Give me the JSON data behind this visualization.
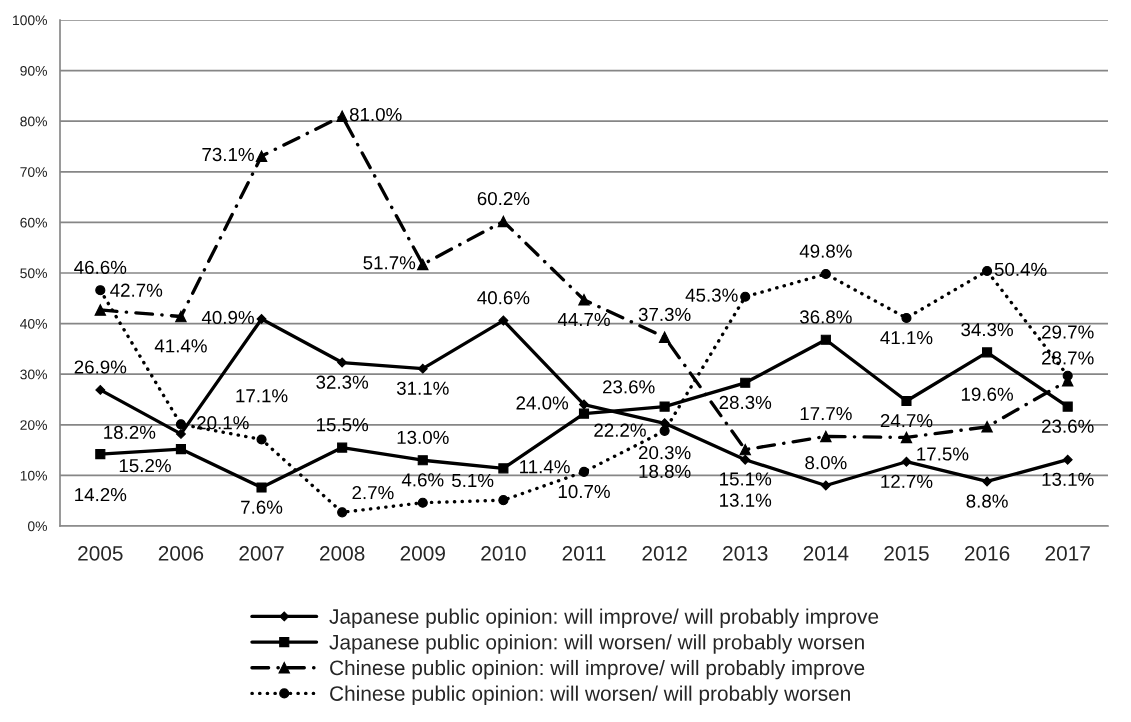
{
  "chart_data": {
    "type": "line",
    "categories": [
      "2005",
      "2006",
      "2007",
      "2008",
      "2009",
      "2010",
      "2011",
      "2012",
      "2013",
      "2014",
      "2015",
      "2016",
      "2017"
    ],
    "ylim": [
      0,
      100
    ],
    "yticks": [
      {
        "value": 0,
        "label": "0%"
      },
      {
        "value": 10,
        "label": "10%"
      },
      {
        "value": 20,
        "label": "20%"
      },
      {
        "value": 30,
        "label": "30%"
      },
      {
        "value": 40,
        "label": "40%"
      },
      {
        "value": 50,
        "label": "50%"
      },
      {
        "value": 60,
        "label": "60%"
      },
      {
        "value": 70,
        "label": "70%"
      },
      {
        "value": 80,
        "label": "80%"
      },
      {
        "value": 90,
        "label": "90%"
      },
      {
        "value": 100,
        "label": "100%"
      }
    ],
    "grid": "y",
    "legend": "bottom",
    "series": [
      {
        "name": "Japanese public opinion: will improve/ will probably improve",
        "color": "#000000",
        "marker": "diamond",
        "line_style": "solid",
        "values": [
          26.9,
          18.2,
          40.9,
          32.3,
          31.1,
          40.6,
          24.0,
          20.3,
          13.1,
          8.0,
          12.7,
          8.8,
          13.1
        ],
        "value_labels": [
          "26.9%",
          "18.2%",
          "40.9%",
          "32.3%",
          "31.1%",
          "40.6%",
          "24.0%",
          "20.3%",
          "13.1%",
          "8.0%",
          "12.7%",
          "8.8%",
          "13.1%"
        ]
      },
      {
        "name": "Japanese public opinion: will worsen/ will probably worsen",
        "color": "#000000",
        "marker": "square",
        "line_style": "solid",
        "values": [
          14.2,
          15.2,
          7.6,
          15.5,
          13.0,
          11.4,
          22.2,
          23.6,
          28.3,
          36.8,
          24.7,
          34.3,
          23.6
        ],
        "value_labels": [
          "14.2%",
          "15.2%",
          "7.6%",
          "15.5%",
          "13.0%",
          "11.4%",
          "22.2%",
          "23.6%",
          "28.3%",
          "36.8%",
          "24.7%",
          "34.3%",
          "23.6%"
        ]
      },
      {
        "name": "Chinese public opinion: will improve/ will probably improve",
        "color": "#000000",
        "marker": "triangle",
        "line_style": "dashed",
        "values": [
          42.7,
          41.4,
          73.1,
          81.0,
          51.7,
          60.2,
          44.7,
          37.3,
          15.1,
          17.7,
          17.5,
          19.6,
          28.7
        ],
        "value_labels": [
          "42.7%",
          "41.4%",
          "73.1%",
          "81.0%",
          "51.7%",
          "60.2%",
          "44.7%",
          "37.3%",
          "15.1%",
          "17.7%",
          "17.5%",
          "19.6%",
          "28.7%"
        ]
      },
      {
        "name": "Chinese public opinion: will worsen/ will probably worsen",
        "color": "#000000",
        "marker": "circle",
        "line_style": "dotted",
        "values": [
          46.6,
          20.1,
          17.1,
          2.7,
          4.6,
          5.1,
          10.7,
          18.8,
          45.3,
          49.8,
          41.1,
          50.4,
          29.7
        ],
        "value_labels": [
          "46.6%",
          "20.1%",
          "17.1%",
          "2.7%",
          "4.6%",
          "5.1%",
          "10.7%",
          "18.8%",
          "45.3%",
          "49.8%",
          "41.1%",
          "50.4%",
          "29.7%"
        ]
      }
    ]
  }
}
